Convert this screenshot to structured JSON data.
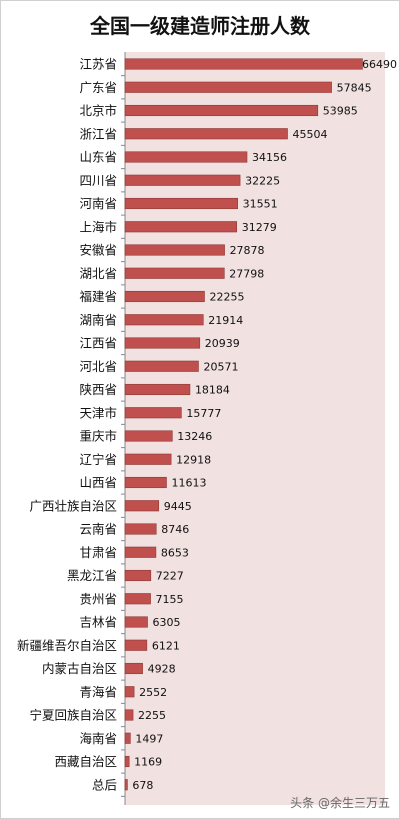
{
  "chart_data": {
    "type": "bar",
    "orientation": "horizontal",
    "title": "全国一级建造师注册人数",
    "categories": [
      "江苏省",
      "广东省",
      "北京市",
      "浙江省",
      "山东省",
      "四川省",
      "河南省",
      "上海市",
      "安徽省",
      "湖北省",
      "福建省",
      "湖南省",
      "江西省",
      "河北省",
      "陕西省",
      "天津市",
      "重庆市",
      "辽宁省",
      "山西省",
      "广西壮族自治区",
      "云南省",
      "甘肃省",
      "黑龙江省",
      "贵州省",
      "吉林省",
      "新疆维吾尔自治区",
      "内蒙古自治区",
      "青海省",
      "宁夏回族自治区",
      "海南省",
      "西藏自治区",
      "总后"
    ],
    "values": [
      66490,
      57845,
      53985,
      45504,
      34156,
      32225,
      31551,
      31279,
      27878,
      27798,
      22255,
      21914,
      20939,
      20571,
      18184,
      15777,
      13246,
      12918,
      11613,
      9445,
      8746,
      8653,
      7227,
      7155,
      6305,
      6121,
      4928,
      2552,
      2255,
      1497,
      1169,
      678
    ],
    "value_labels": [
      "66490",
      "57845",
      "53985",
      "45504",
      "34156",
      "32225",
      "31551",
      "31279",
      "27878",
      "27798",
      "22255",
      "21914",
      "20939",
      "20571",
      "18184",
      "15777",
      "13246",
      "12918",
      "11613",
      "9445",
      "8746",
      "8653",
      "7227",
      "7155",
      "6305",
      "6121",
      "4928",
      "2552",
      "2255",
      "1497",
      "1169",
      "678"
    ],
    "xlim": [
      0,
      70000
    ],
    "grid": false,
    "legend": "none",
    "bar_color": "#c0504d",
    "plot_background": "#f2e1e1"
  },
  "watermark": "头条 @余生三万五"
}
